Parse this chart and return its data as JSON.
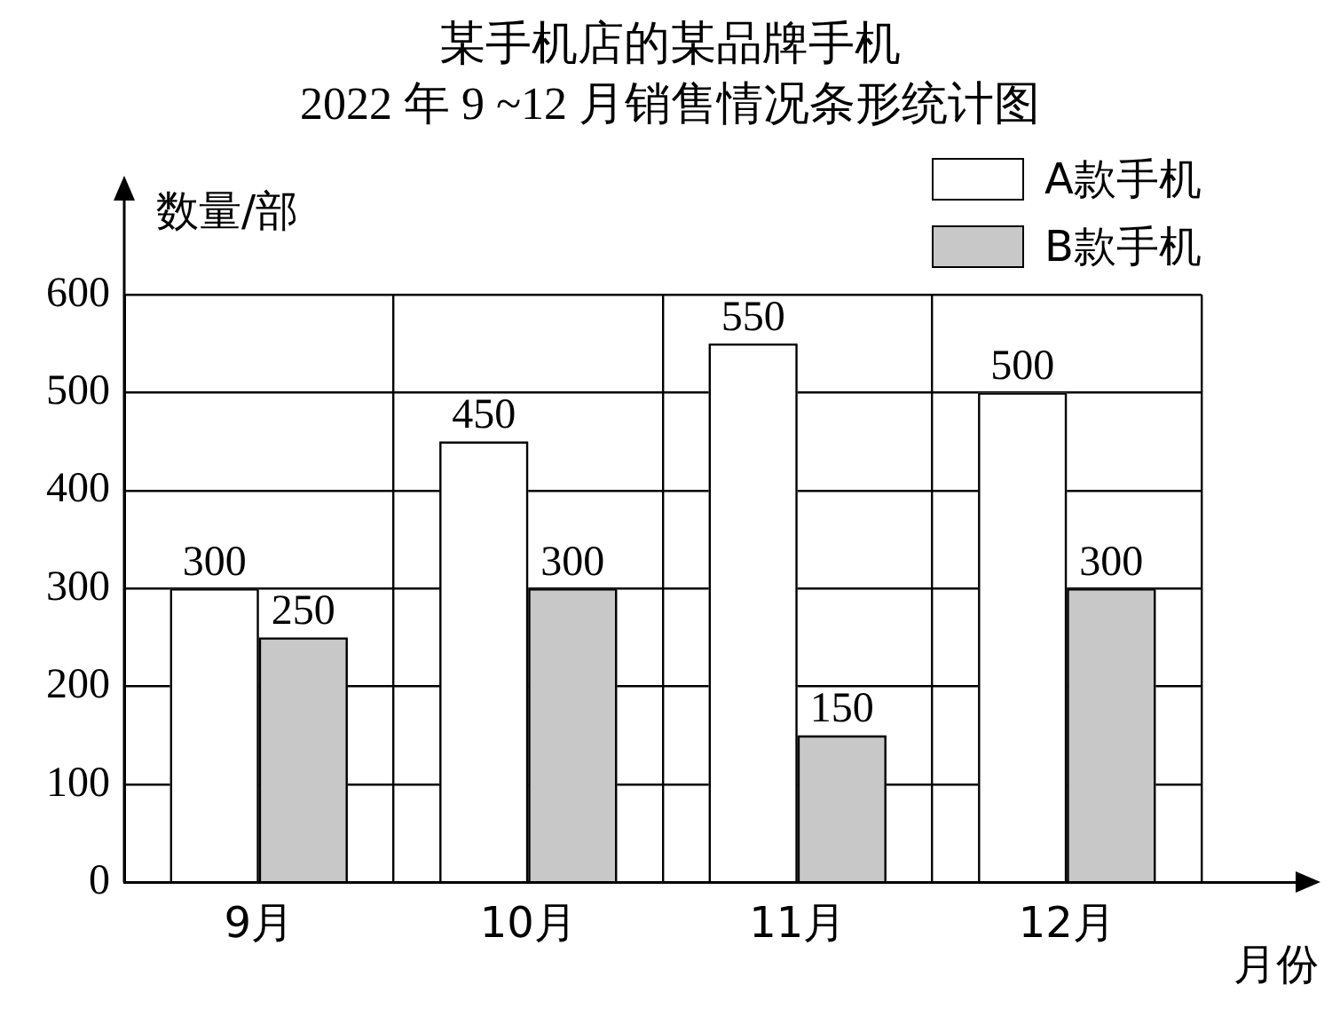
{
  "chart_data": {
    "type": "bar",
    "title": "某手机店的某品牌手机",
    "subtitle": "2022 年 9 ~12 月销售情况条形统计图",
    "xlabel": "月份",
    "ylabel": "数量/部",
    "categories": [
      "9月",
      "10月",
      "11月",
      "12月"
    ],
    "series": [
      {
        "name": "A款手机",
        "color": "#ffffff",
        "values": [
          300,
          450,
          550,
          500
        ]
      },
      {
        "name": "B款手机",
        "color": "#c8c8c8",
        "values": [
          250,
          300,
          150,
          300
        ]
      }
    ],
    "ylim": [
      0,
      600
    ],
    "yticks": [
      0,
      100,
      200,
      300,
      400,
      500,
      600
    ],
    "grid": true,
    "legend": "top right",
    "data_labels": true
  }
}
